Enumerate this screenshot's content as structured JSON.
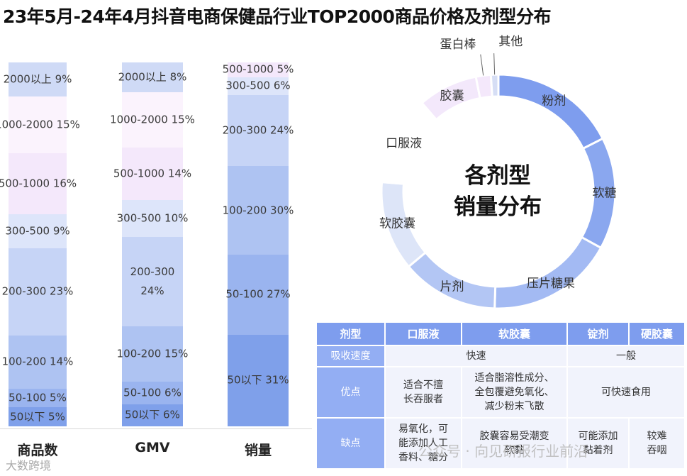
{
  "title": "23年5月-24年4月抖音电商保健品行业TOP2000商品价格及剂型分布",
  "chart_data": [
    {
      "type": "bar",
      "stacked": true,
      "normalized": "100%",
      "categories": [
        "商品数",
        "GMV",
        "销量"
      ],
      "series": [
        {
          "name": "50以下",
          "values": [
            5,
            6,
            31
          ],
          "labels": [
            "50以下 5%",
            "50以下 6%",
            "50以下 31%"
          ],
          "color": "#7fa0ea"
        },
        {
          "name": "50-100",
          "values": [
            5,
            6,
            27
          ],
          "labels": [
            "50-100 5%",
            "50-100 6%",
            "50-100 27%"
          ],
          "color": "#9ab4ef"
        },
        {
          "name": "100-200",
          "values": [
            14,
            15,
            30
          ],
          "labels": [
            "100-200 14%",
            "100-200 15%",
            "100-200 30%"
          ],
          "color": "#aec3f2"
        },
        {
          "name": "200-300",
          "values": [
            23,
            24,
            24
          ],
          "labels": [
            "200-300 23%",
            "200-300\n24%",
            "200-300 24%"
          ],
          "color": "#c6d4f6"
        },
        {
          "name": "300-500",
          "values": [
            9,
            10,
            6
          ],
          "labels": [
            "300-500 9%",
            "300-500 10%",
            "300-500 6%"
          ],
          "color": "#dde5fa"
        },
        {
          "name": "500-1000",
          "values": [
            16,
            14,
            5
          ],
          "labels": [
            "500-1000 16%",
            "500-1000 14%",
            "500-1000 5%"
          ],
          "color": "#f4e8fb"
        },
        {
          "name": "1000-2000",
          "values": [
            15,
            15,
            0
          ],
          "labels": [
            "1000-2000 15%",
            "1000-2000 15%",
            ""
          ],
          "color": "#fbf3fd"
        },
        {
          "name": "2000以上",
          "values": [
            9,
            8,
            0
          ],
          "labels": [
            "2000以上 9%",
            "2000以上 8%",
            ""
          ],
          "color": "#cfdaf6"
        }
      ]
    },
    {
      "type": "pie",
      "donut": true,
      "title": "各剂型\n销量分布",
      "labels": [
        "粉剂",
        "软糖",
        "压片糖果",
        "片剂",
        "软胶囊",
        "口服液",
        "胶囊",
        "蛋白棒",
        "其他"
      ],
      "values": [
        17,
        15,
        17,
        13,
        12,
        12,
        8,
        2,
        1
      ],
      "colors": [
        "#7e9dee",
        "#8aa7ef",
        "#a3baf3",
        "#b3c6f4",
        "#dde5f8",
        "#ffffff",
        "#f3e8fb",
        "#f4e8fb",
        "#d6def5"
      ]
    }
  ],
  "table": {
    "headers": [
      "剂型",
      "口服液",
      "软胶囊",
      "锭剂",
      "硬胶囊"
    ],
    "rows": [
      {
        "head": "吸收速度",
        "cells": [
          "快速",
          "一般"
        ]
      },
      {
        "head": "优点",
        "cells": [
          "适合不擅\n长吞服者",
          "适合脂溶性成分、\n全包覆避免氧化、\n减少粉末飞散",
          "可快速食用"
        ]
      },
      {
        "head": "缺点",
        "cells": [
          "易氧化，可\n能添加人工\n香料、糖分",
          "胶囊容易受潮变\n软黏",
          "可能添加\n黏着剂",
          "较难\n吞咽"
        ]
      }
    ]
  },
  "watermark": "大数跨境",
  "watermark2": "公众号 · 向见研报行业前沿"
}
